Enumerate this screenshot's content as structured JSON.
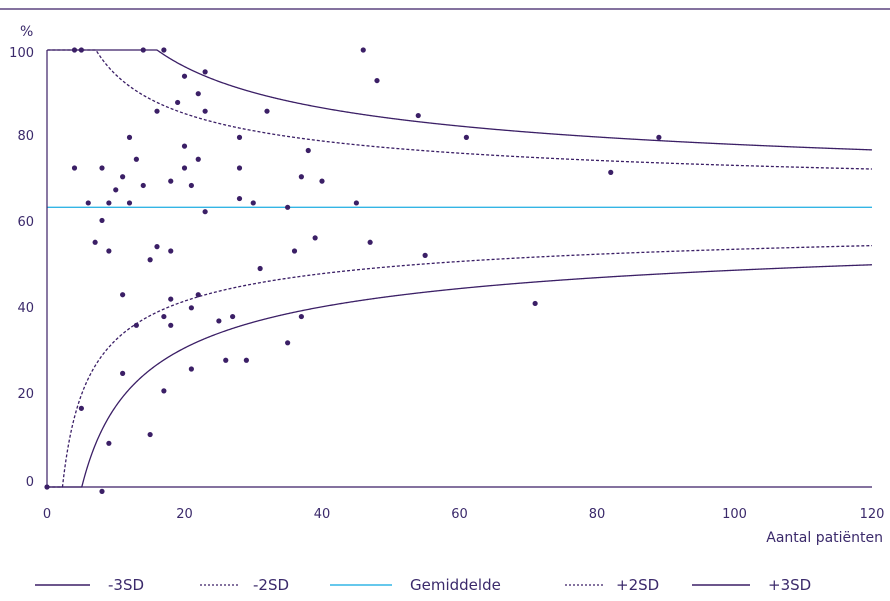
{
  "chart_data": {
    "type": "scatter",
    "title": "",
    "xlabel": "Aantal patiënten",
    "ylabel": "%",
    "xlim": [
      0,
      120
    ],
    "ylim": [
      0,
      100
    ],
    "x_ticks": [
      "0",
      "20",
      "40",
      "60",
      "80",
      "100",
      "120"
    ],
    "y_ticks": [
      "0",
      "20",
      "40",
      "60",
      "80",
      "100"
    ],
    "grid": false,
    "legend_position": "bottom",
    "mean": 64,
    "colors": {
      "curves": "#3b1f66",
      "mean": "#33b5e5",
      "points": "#3b1f66",
      "text": "#3b2a6b"
    },
    "legend": [
      {
        "label": "-3SD",
        "style": "solid",
        "color": "#3b1f66"
      },
      {
        "label": "-2SD",
        "style": "dotted",
        "color": "#3b1f66"
      },
      {
        "label": "Gemiddelde",
        "style": "solid",
        "color": "#33b5e5"
      },
      {
        "label": "+2SD",
        "style": "dotted",
        "color": "#3b1f66"
      },
      {
        "label": "+3SD",
        "style": "solid",
        "color": "#3b1f66"
      }
    ],
    "points": [
      [
        0,
        0
      ],
      [
        4,
        100
      ],
      [
        5,
        100
      ],
      [
        14,
        100
      ],
      [
        17,
        100
      ],
      [
        46,
        100
      ],
      [
        20,
        94
      ],
      [
        23,
        95
      ],
      [
        48,
        93
      ],
      [
        22,
        90
      ],
      [
        19,
        88
      ],
      [
        16,
        86
      ],
      [
        23,
        86
      ],
      [
        32,
        86
      ],
      [
        54,
        85
      ],
      [
        12,
        80
      ],
      [
        20,
        78
      ],
      [
        28,
        80
      ],
      [
        61,
        80
      ],
      [
        89,
        80
      ],
      [
        38,
        77
      ],
      [
        4,
        73
      ],
      [
        8,
        73
      ],
      [
        13,
        75
      ],
      [
        22,
        75
      ],
      [
        20,
        73
      ],
      [
        28,
        73
      ],
      [
        82,
        72
      ],
      [
        11,
        71
      ],
      [
        18,
        70
      ],
      [
        14,
        69
      ],
      [
        21,
        69
      ],
      [
        37,
        71
      ],
      [
        40,
        70
      ],
      [
        10,
        68
      ],
      [
        6,
        65
      ],
      [
        9,
        65
      ],
      [
        12,
        65
      ],
      [
        28,
        66
      ],
      [
        30,
        65
      ],
      [
        35,
        64
      ],
      [
        45,
        65
      ],
      [
        23,
        63
      ],
      [
        8,
        61
      ],
      [
        39,
        57
      ],
      [
        7,
        56
      ],
      [
        47,
        56
      ],
      [
        9,
        54
      ],
      [
        16,
        55
      ],
      [
        18,
        54
      ],
      [
        36,
        54
      ],
      [
        55,
        53
      ],
      [
        15,
        52
      ],
      [
        31,
        50
      ],
      [
        11,
        44
      ],
      [
        18,
        43
      ],
      [
        22,
        44
      ],
      [
        21,
        41
      ],
      [
        71,
        42
      ],
      [
        13,
        37
      ],
      [
        17,
        39
      ],
      [
        18,
        37
      ],
      [
        25,
        38
      ],
      [
        27,
        39
      ],
      [
        37,
        39
      ],
      [
        35,
        33
      ],
      [
        26,
        29
      ],
      [
        29,
        29
      ],
      [
        11,
        26
      ],
      [
        21,
        27
      ],
      [
        17,
        22
      ],
      [
        5,
        18
      ],
      [
        15,
        12
      ],
      [
        9,
        10
      ],
      [
        8,
        -1
      ]
    ]
  }
}
